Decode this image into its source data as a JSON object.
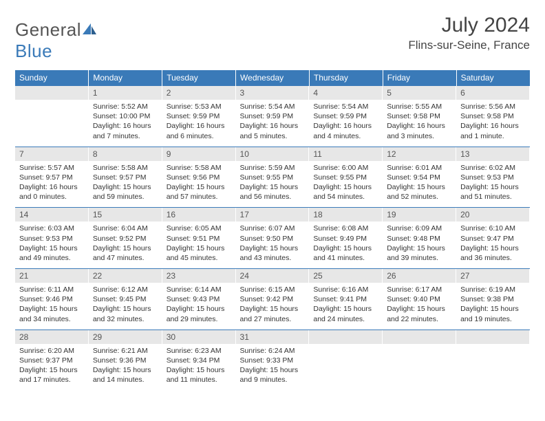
{
  "logo": {
    "text_a": "General",
    "text_b": "Blue"
  },
  "title": "July 2024",
  "location": "Flins-sur-Seine, France",
  "colors": {
    "header_bg": "#3a7ab8",
    "header_text": "#ffffff",
    "daynum_bg": "#e7e7e7",
    "row_border": "#3a7ab8",
    "body_text": "#333333",
    "logo_gray": "#555555",
    "logo_blue": "#3a7ab8"
  },
  "dow": [
    "Sunday",
    "Monday",
    "Tuesday",
    "Wednesday",
    "Thursday",
    "Friday",
    "Saturday"
  ],
  "weeks": [
    [
      {
        "n": "",
        "sr": "",
        "ss": "",
        "dl": ""
      },
      {
        "n": "1",
        "sr": "Sunrise: 5:52 AM",
        "ss": "Sunset: 10:00 PM",
        "dl": "Daylight: 16 hours and 7 minutes."
      },
      {
        "n": "2",
        "sr": "Sunrise: 5:53 AM",
        "ss": "Sunset: 9:59 PM",
        "dl": "Daylight: 16 hours and 6 minutes."
      },
      {
        "n": "3",
        "sr": "Sunrise: 5:54 AM",
        "ss": "Sunset: 9:59 PM",
        "dl": "Daylight: 16 hours and 5 minutes."
      },
      {
        "n": "4",
        "sr": "Sunrise: 5:54 AM",
        "ss": "Sunset: 9:59 PM",
        "dl": "Daylight: 16 hours and 4 minutes."
      },
      {
        "n": "5",
        "sr": "Sunrise: 5:55 AM",
        "ss": "Sunset: 9:58 PM",
        "dl": "Daylight: 16 hours and 3 minutes."
      },
      {
        "n": "6",
        "sr": "Sunrise: 5:56 AM",
        "ss": "Sunset: 9:58 PM",
        "dl": "Daylight: 16 hours and 1 minute."
      }
    ],
    [
      {
        "n": "7",
        "sr": "Sunrise: 5:57 AM",
        "ss": "Sunset: 9:57 PM",
        "dl": "Daylight: 16 hours and 0 minutes."
      },
      {
        "n": "8",
        "sr": "Sunrise: 5:58 AM",
        "ss": "Sunset: 9:57 PM",
        "dl": "Daylight: 15 hours and 59 minutes."
      },
      {
        "n": "9",
        "sr": "Sunrise: 5:58 AM",
        "ss": "Sunset: 9:56 PM",
        "dl": "Daylight: 15 hours and 57 minutes."
      },
      {
        "n": "10",
        "sr": "Sunrise: 5:59 AM",
        "ss": "Sunset: 9:55 PM",
        "dl": "Daylight: 15 hours and 56 minutes."
      },
      {
        "n": "11",
        "sr": "Sunrise: 6:00 AM",
        "ss": "Sunset: 9:55 PM",
        "dl": "Daylight: 15 hours and 54 minutes."
      },
      {
        "n": "12",
        "sr": "Sunrise: 6:01 AM",
        "ss": "Sunset: 9:54 PM",
        "dl": "Daylight: 15 hours and 52 minutes."
      },
      {
        "n": "13",
        "sr": "Sunrise: 6:02 AM",
        "ss": "Sunset: 9:53 PM",
        "dl": "Daylight: 15 hours and 51 minutes."
      }
    ],
    [
      {
        "n": "14",
        "sr": "Sunrise: 6:03 AM",
        "ss": "Sunset: 9:53 PM",
        "dl": "Daylight: 15 hours and 49 minutes."
      },
      {
        "n": "15",
        "sr": "Sunrise: 6:04 AM",
        "ss": "Sunset: 9:52 PM",
        "dl": "Daylight: 15 hours and 47 minutes."
      },
      {
        "n": "16",
        "sr": "Sunrise: 6:05 AM",
        "ss": "Sunset: 9:51 PM",
        "dl": "Daylight: 15 hours and 45 minutes."
      },
      {
        "n": "17",
        "sr": "Sunrise: 6:07 AM",
        "ss": "Sunset: 9:50 PM",
        "dl": "Daylight: 15 hours and 43 minutes."
      },
      {
        "n": "18",
        "sr": "Sunrise: 6:08 AM",
        "ss": "Sunset: 9:49 PM",
        "dl": "Daylight: 15 hours and 41 minutes."
      },
      {
        "n": "19",
        "sr": "Sunrise: 6:09 AM",
        "ss": "Sunset: 9:48 PM",
        "dl": "Daylight: 15 hours and 39 minutes."
      },
      {
        "n": "20",
        "sr": "Sunrise: 6:10 AM",
        "ss": "Sunset: 9:47 PM",
        "dl": "Daylight: 15 hours and 36 minutes."
      }
    ],
    [
      {
        "n": "21",
        "sr": "Sunrise: 6:11 AM",
        "ss": "Sunset: 9:46 PM",
        "dl": "Daylight: 15 hours and 34 minutes."
      },
      {
        "n": "22",
        "sr": "Sunrise: 6:12 AM",
        "ss": "Sunset: 9:45 PM",
        "dl": "Daylight: 15 hours and 32 minutes."
      },
      {
        "n": "23",
        "sr": "Sunrise: 6:14 AM",
        "ss": "Sunset: 9:43 PM",
        "dl": "Daylight: 15 hours and 29 minutes."
      },
      {
        "n": "24",
        "sr": "Sunrise: 6:15 AM",
        "ss": "Sunset: 9:42 PM",
        "dl": "Daylight: 15 hours and 27 minutes."
      },
      {
        "n": "25",
        "sr": "Sunrise: 6:16 AM",
        "ss": "Sunset: 9:41 PM",
        "dl": "Daylight: 15 hours and 24 minutes."
      },
      {
        "n": "26",
        "sr": "Sunrise: 6:17 AM",
        "ss": "Sunset: 9:40 PM",
        "dl": "Daylight: 15 hours and 22 minutes."
      },
      {
        "n": "27",
        "sr": "Sunrise: 6:19 AM",
        "ss": "Sunset: 9:38 PM",
        "dl": "Daylight: 15 hours and 19 minutes."
      }
    ],
    [
      {
        "n": "28",
        "sr": "Sunrise: 6:20 AM",
        "ss": "Sunset: 9:37 PM",
        "dl": "Daylight: 15 hours and 17 minutes."
      },
      {
        "n": "29",
        "sr": "Sunrise: 6:21 AM",
        "ss": "Sunset: 9:36 PM",
        "dl": "Daylight: 15 hours and 14 minutes."
      },
      {
        "n": "30",
        "sr": "Sunrise: 6:23 AM",
        "ss": "Sunset: 9:34 PM",
        "dl": "Daylight: 15 hours and 11 minutes."
      },
      {
        "n": "31",
        "sr": "Sunrise: 6:24 AM",
        "ss": "Sunset: 9:33 PM",
        "dl": "Daylight: 15 hours and 9 minutes."
      },
      {
        "n": "",
        "sr": "",
        "ss": "",
        "dl": ""
      },
      {
        "n": "",
        "sr": "",
        "ss": "",
        "dl": ""
      },
      {
        "n": "",
        "sr": "",
        "ss": "",
        "dl": ""
      }
    ]
  ]
}
